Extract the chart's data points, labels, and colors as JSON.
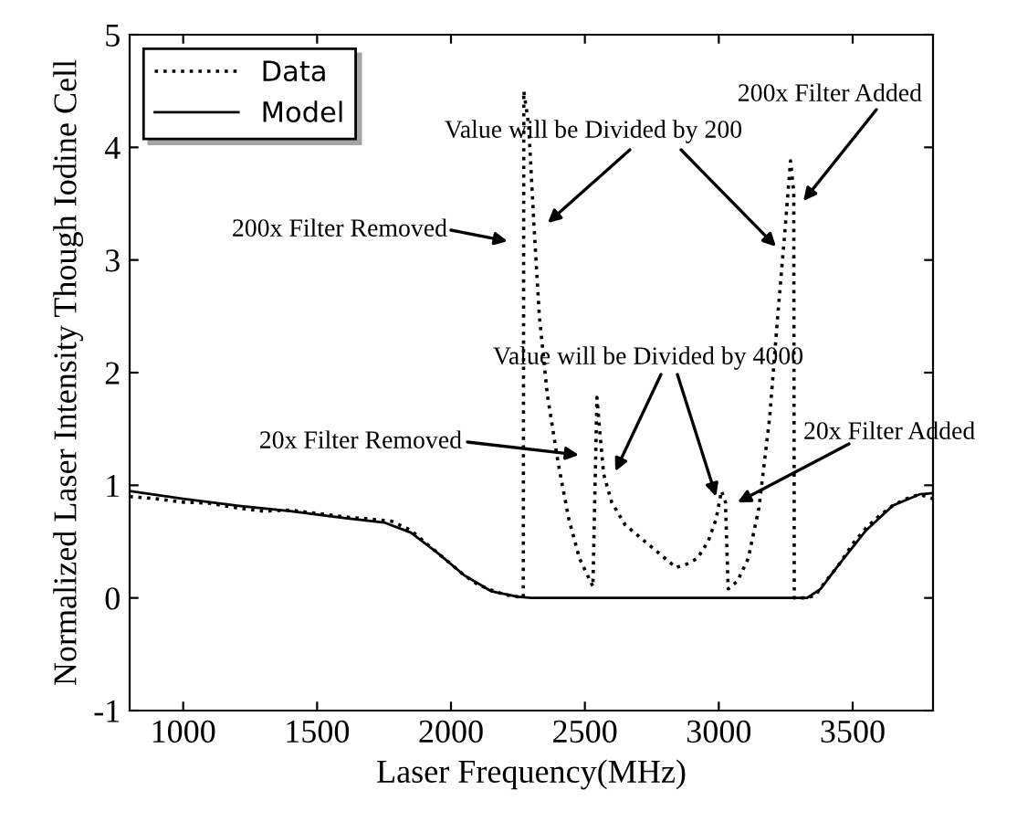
{
  "chart_data": {
    "type": "line",
    "xlabel": "Laser Frequency(MHz)",
    "ylabel": "Normalized Laser Intensity Though Iodine Cell",
    "xlim": [
      800,
      3800
    ],
    "xticks": [
      1000,
      1500,
      2000,
      2500,
      3000,
      3500
    ],
    "ylim": [
      -1,
      5
    ],
    "yticks": [
      -1,
      0,
      1,
      2,
      3,
      4,
      5
    ],
    "legend": "top left",
    "grid": false,
    "series": [
      {
        "name": "Data",
        "color": "#000000",
        "line_style": "dotted",
        "x": [
          800,
          900,
          1000,
          1100,
          1200,
          1300,
          1400,
          1500,
          1600,
          1700,
          1780,
          1850,
          1900,
          1950,
          2000,
          2050,
          2100,
          2150,
          2200,
          2250,
          2270,
          2272,
          2290,
          2310,
          2330,
          2360,
          2400,
          2440,
          2480,
          2530,
          2545,
          2555,
          2570,
          2600,
          2650,
          2700,
          2750,
          2800,
          2840,
          2880,
          2920,
          2960,
          2990,
          3010,
          3025,
          3035,
          3070,
          3110,
          3150,
          3190,
          3220,
          3245,
          3268,
          3280,
          3282,
          3320,
          3360,
          3400,
          3450,
          3500,
          3550,
          3600,
          3650,
          3700,
          3750,
          3800
        ],
        "values": [
          0.9,
          0.88,
          0.85,
          0.84,
          0.8,
          0.77,
          0.78,
          0.75,
          0.72,
          0.7,
          0.68,
          0.6,
          0.5,
          0.4,
          0.3,
          0.2,
          0.12,
          0.07,
          0.03,
          0.01,
          0.0,
          4.5,
          4.2,
          3.3,
          2.5,
          1.8,
          1.2,
          0.7,
          0.35,
          0.1,
          1.78,
          1.5,
          1.1,
          0.85,
          0.65,
          0.55,
          0.45,
          0.35,
          0.27,
          0.3,
          0.35,
          0.5,
          0.7,
          0.95,
          0.85,
          0.08,
          0.15,
          0.35,
          0.8,
          1.6,
          2.5,
          3.2,
          3.88,
          3.6,
          0.0,
          0.0,
          0.02,
          0.15,
          0.3,
          0.48,
          0.62,
          0.73,
          0.82,
          0.88,
          0.92,
          0.88
        ]
      },
      {
        "name": "Model",
        "color": "#000000",
        "line_style": "solid",
        "x": [
          800,
          1000,
          1200,
          1400,
          1600,
          1750,
          1850,
          1950,
          2050,
          2150,
          2250,
          2300,
          3330,
          3380,
          3450,
          3550,
          3650,
          3750,
          3800
        ],
        "values": [
          0.95,
          0.88,
          0.82,
          0.77,
          0.71,
          0.67,
          0.58,
          0.4,
          0.2,
          0.06,
          0.01,
          0.0,
          0.0,
          0.08,
          0.3,
          0.6,
          0.82,
          0.92,
          0.93
        ]
      }
    ],
    "annotations": [
      "200x Filter Removed",
      "Value will be Divided by 200",
      "200x Filter Added",
      {
        "text": "Value will be Divided by 4000",
        "x": 2990,
        "y": 0.9
      },
      "20x Filter Removed",
      "20x Filter Added"
    ]
  }
}
